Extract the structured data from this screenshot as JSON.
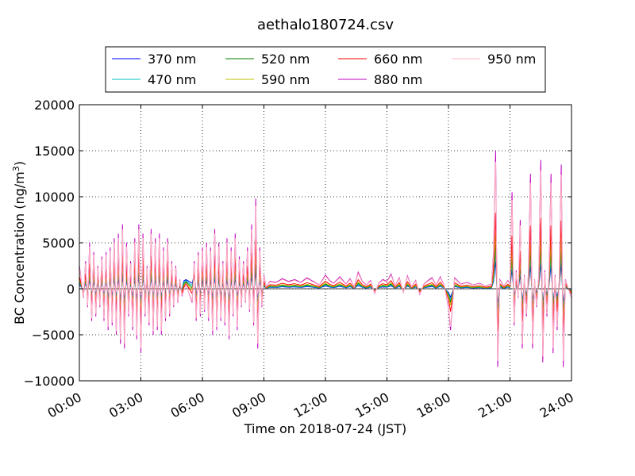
{
  "chart_data": {
    "type": "line",
    "title": "aethalo180724.csv",
    "xlabel": "Time on 2018-07-24 (JST)",
    "ylabel": "BC Concentration (ng/m",
    "ylabel_superscript": "3",
    "ylabel_suffix": ")",
    "x_tick_labels": [
      "00:00",
      "03:00",
      "06:00",
      "09:00",
      "12:00",
      "15:00",
      "18:00",
      "21:00",
      "24:00"
    ],
    "xlim_hours": [
      0,
      24
    ],
    "ylim": [
      -10000,
      20000
    ],
    "y_ticks": [
      -10000,
      -5000,
      0,
      5000,
      10000,
      15000,
      20000
    ],
    "y_tick_labels": [
      "−10000",
      "−5000",
      "0",
      "5000",
      "10000",
      "15000",
      "20000"
    ],
    "grid": true,
    "legend_placement": "top",
    "x_unit": "hours",
    "sample_interval_hours": 0.1,
    "series": [
      {
        "name": "370 nm",
        "color": "#0000ff",
        "peak_scale": 0.2,
        "drift": 900
      },
      {
        "name": "470 nm",
        "color": "#00bfbf",
        "peak_scale": 0.26,
        "drift": 750
      },
      {
        "name": "520 nm",
        "color": "#008000",
        "peak_scale": 0.33,
        "drift": 600
      },
      {
        "name": "590 nm",
        "color": "#bfbf00",
        "peak_scale": 0.4,
        "drift": 450
      },
      {
        "name": "660 nm",
        "color": "#ff0000",
        "peak_scale": 0.55,
        "drift": 300
      },
      {
        "name": "880 nm",
        "color": "#bf00bf",
        "peak_scale": 1.0,
        "drift": 0
      },
      {
        "name": "950 nm",
        "color": "#ffb6c1",
        "peak_scale": 0.92,
        "drift": 0
      }
    ],
    "peak_profile": [
      [
        0.0,
        2500
      ],
      [
        0.2,
        -1000
      ],
      [
        0.3,
        3000
      ],
      [
        0.4,
        -2000
      ],
      [
        0.5,
        5000
      ],
      [
        0.6,
        -3500
      ],
      [
        0.7,
        4000
      ],
      [
        0.8,
        -3000
      ],
      [
        0.9,
        2500
      ],
      [
        1.0,
        -2000
      ],
      [
        1.1,
        3500
      ],
      [
        1.2,
        -3500
      ],
      [
        1.3,
        4000
      ],
      [
        1.4,
        -4500
      ],
      [
        1.5,
        4500
      ],
      [
        1.6,
        -4000
      ],
      [
        1.7,
        5500
      ],
      [
        1.8,
        -5000
      ],
      [
        1.9,
        6000
      ],
      [
        2.0,
        -6000
      ],
      [
        2.1,
        7000
      ],
      [
        2.2,
        -6500
      ],
      [
        2.3,
        5000
      ],
      [
        2.4,
        -3000
      ],
      [
        2.5,
        3000
      ],
      [
        2.6,
        -4500
      ],
      [
        2.7,
        5500
      ],
      [
        2.8,
        -5500
      ],
      [
        2.9,
        7000
      ],
      [
        3.0,
        -7000
      ],
      [
        3.1,
        6000
      ],
      [
        3.2,
        -3000
      ],
      [
        3.3,
        2500
      ],
      [
        3.4,
        -4000
      ],
      [
        3.5,
        6500
      ],
      [
        3.6,
        -5000
      ],
      [
        3.7,
        5500
      ],
      [
        3.8,
        -4500
      ],
      [
        3.9,
        6000
      ],
      [
        4.0,
        -5000
      ],
      [
        4.1,
        4500
      ],
      [
        4.2,
        -3500
      ],
      [
        4.3,
        5500
      ],
      [
        4.4,
        -3000
      ],
      [
        4.5,
        3000
      ],
      [
        4.6,
        -2000
      ],
      [
        4.7,
        2500
      ],
      [
        4.8,
        -1500
      ],
      [
        4.9,
        1000
      ],
      [
        5.0,
        -800
      ],
      [
        5.2,
        500
      ],
      [
        5.5,
        -1500
      ],
      [
        5.6,
        3000
      ],
      [
        5.7,
        -3500
      ],
      [
        5.8,
        4000
      ],
      [
        5.9,
        -3000
      ],
      [
        6.0,
        4500
      ],
      [
        6.1,
        -2500
      ],
      [
        6.2,
        5000
      ],
      [
        6.3,
        -3500
      ],
      [
        6.4,
        4500
      ],
      [
        6.5,
        -5000
      ],
      [
        6.6,
        6500
      ],
      [
        6.7,
        -4500
      ],
      [
        6.8,
        5000
      ],
      [
        6.9,
        -3500
      ],
      [
        7.0,
        3000
      ],
      [
        7.1,
        -4000
      ],
      [
        7.2,
        5500
      ],
      [
        7.3,
        -5500
      ],
      [
        7.4,
        4500
      ],
      [
        7.5,
        -3000
      ],
      [
        7.6,
        6000
      ],
      [
        7.7,
        -4500
      ],
      [
        7.8,
        3500
      ],
      [
        7.9,
        -2000
      ],
      [
        8.0,
        3000
      ],
      [
        8.1,
        -1500
      ],
      [
        8.2,
        4500
      ],
      [
        8.3,
        -2500
      ],
      [
        8.4,
        7000
      ],
      [
        8.5,
        -4000
      ],
      [
        8.6,
        9800
      ],
      [
        8.7,
        -6500
      ],
      [
        8.8,
        4500
      ],
      [
        8.9,
        -2000
      ],
      [
        9.0,
        1500
      ],
      [
        9.1,
        200
      ],
      [
        9.3,
        800
      ],
      [
        9.6,
        700
      ],
      [
        9.9,
        1100
      ],
      [
        10.2,
        800
      ],
      [
        10.5,
        1000
      ],
      [
        10.8,
        700
      ],
      [
        11.1,
        1200
      ],
      [
        11.4,
        800
      ],
      [
        11.7,
        400
      ],
      [
        12.0,
        1500
      ],
      [
        12.2,
        900
      ],
      [
        12.4,
        600
      ],
      [
        12.7,
        1300
      ],
      [
        13.0,
        500
      ],
      [
        13.2,
        1100
      ],
      [
        13.4,
        200
      ],
      [
        13.6,
        1800
      ],
      [
        13.8,
        800
      ],
      [
        14.0,
        400
      ],
      [
        14.2,
        900
      ],
      [
        14.4,
        -500
      ],
      [
        14.6,
        600
      ],
      [
        14.8,
        1000
      ],
      [
        15.0,
        800
      ],
      [
        15.2,
        1600
      ],
      [
        15.4,
        300
      ],
      [
        15.6,
        1200
      ],
      [
        15.8,
        -400
      ],
      [
        16.0,
        1400
      ],
      [
        16.2,
        200
      ],
      [
        16.4,
        900
      ],
      [
        16.6,
        -600
      ],
      [
        16.8,
        500
      ],
      [
        17.0,
        900
      ],
      [
        17.2,
        1200
      ],
      [
        17.4,
        400
      ],
      [
        17.6,
        1300
      ],
      [
        17.8,
        300
      ],
      [
        18.0,
        -2000
      ],
      [
        18.05,
        5500
      ],
      [
        18.1,
        -4500
      ],
      [
        18.3,
        1200
      ],
      [
        18.6,
        500
      ],
      [
        18.9,
        700
      ],
      [
        19.2,
        400
      ],
      [
        19.5,
        600
      ],
      [
        19.8,
        300
      ],
      [
        20.1,
        500
      ],
      [
        20.2,
        4000
      ],
      [
        20.3,
        15000
      ],
      [
        20.4,
        -8500
      ],
      [
        20.5,
        1000
      ],
      [
        20.7,
        300
      ],
      [
        20.9,
        900
      ],
      [
        21.0,
        500
      ],
      [
        21.1,
        10500
      ],
      [
        21.2,
        -4000
      ],
      [
        21.3,
        2000
      ],
      [
        21.4,
        -1000
      ],
      [
        21.5,
        7500
      ],
      [
        21.6,
        -6500
      ],
      [
        21.7,
        1500
      ],
      [
        21.8,
        -3000
      ],
      [
        21.9,
        2000
      ],
      [
        22.0,
        12500
      ],
      [
        22.1,
        -6500
      ],
      [
        22.2,
        1000
      ],
      [
        22.3,
        -2000
      ],
      [
        22.4,
        1500
      ],
      [
        22.5,
        14000
      ],
      [
        22.6,
        -8000
      ],
      [
        22.7,
        2000
      ],
      [
        22.8,
        -3000
      ],
      [
        22.9,
        1500
      ],
      [
        23.0,
        12500
      ],
      [
        23.1,
        -7000
      ],
      [
        23.2,
        1500
      ],
      [
        23.3,
        -4500
      ],
      [
        23.4,
        1000
      ],
      [
        23.5,
        13500
      ],
      [
        23.6,
        -8500
      ],
      [
        23.7,
        1000
      ],
      [
        24.0,
        -1000
      ]
    ]
  }
}
